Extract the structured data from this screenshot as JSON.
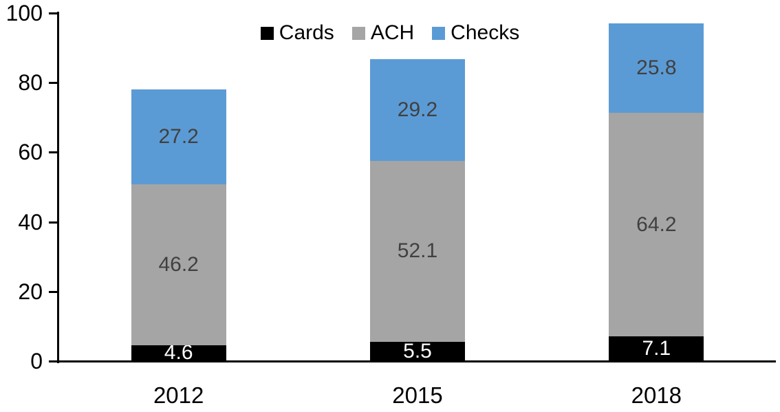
{
  "chart_data": {
    "type": "bar",
    "stacked": true,
    "title": "",
    "xlabel": "",
    "ylabel": "",
    "categories": [
      "2012",
      "2015",
      "2018"
    ],
    "series": [
      {
        "name": "Cards",
        "color": "#000000",
        "label_color": "#ffffff",
        "values": [
          4.6,
          5.5,
          7.1
        ]
      },
      {
        "name": "ACH",
        "color": "#a5a5a5",
        "label_color": "#404040",
        "values": [
          46.2,
          52.1,
          64.2
        ]
      },
      {
        "name": "Checks",
        "color": "#5b9bd5",
        "label_color": "#404040",
        "values": [
          27.2,
          29.2,
          25.8
        ]
      }
    ],
    "totals": [
      78.0,
      86.8,
      97.1
    ],
    "ylim": [
      0,
      100
    ],
    "yticks": [
      0,
      20,
      40,
      60,
      80,
      100
    ],
    "grid": false,
    "legend_position": "top-center",
    "data_labels": true,
    "axis_color": "#000000",
    "background_color": "#ffffff"
  }
}
